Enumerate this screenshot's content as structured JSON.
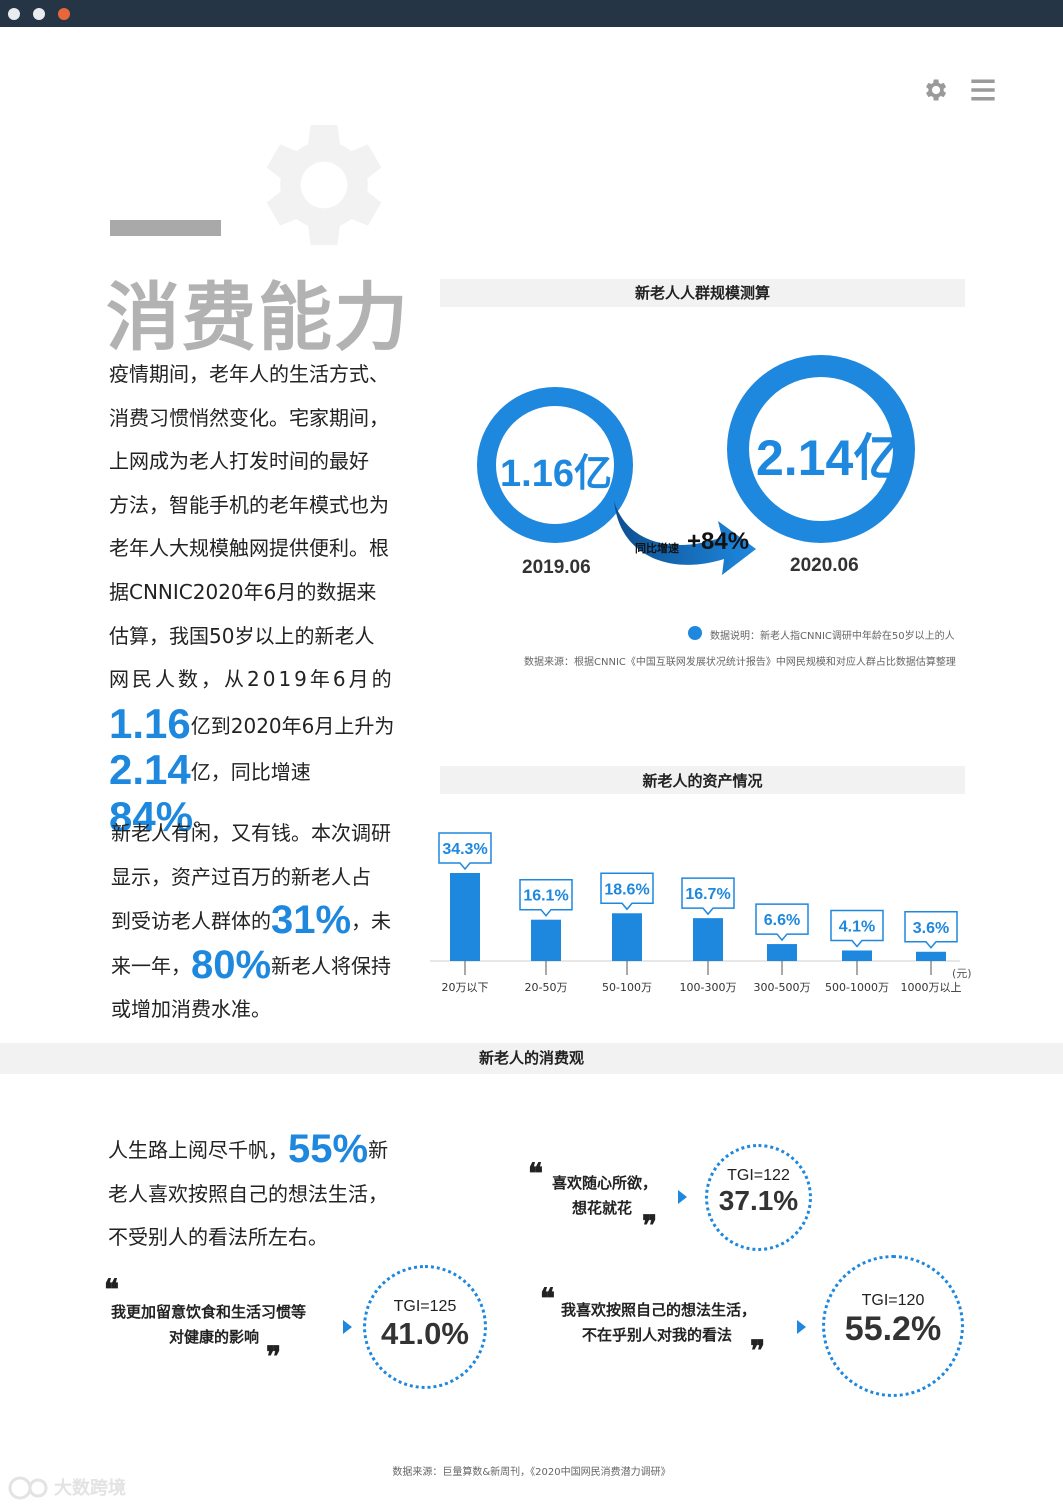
{
  "header": {
    "icons": [
      "gear-icon",
      "menu-icon"
    ]
  },
  "section": {
    "title": "消费能力"
  },
  "intro": {
    "line1": "疫情期间，老年人的生活方式、",
    "line2": "消费习惯悄然变化。宅家期间，",
    "line3": "上网成为老人打发时间的最好",
    "line4": "方法，智能手机的老年模式也为",
    "line5": "老年人大规模触网提供便利。根",
    "line6": "据CNNIC2020年6月的数据来",
    "line7": "估算，我国50岁以上的新老人",
    "line8": "网民人数，从2019年6月的",
    "num1": "1.16",
    "after_num1": "亿到2020年6月上升为",
    "num2": "2.14",
    "after_num2": "亿，同比增速",
    "num3": "84%",
    "end": "。"
  },
  "wealth_text": {
    "line1": "新老人有闲，又有钱。本次调研",
    "line2": "显示，资产过百万的新老人占",
    "line3_pre": "到受访老人群体的",
    "pct1": "31%",
    "line3_post": "，未",
    "line4_pre": "来一年，",
    "pct2": "80%",
    "line4_post": "新老人将保持",
    "line5": "或增加消费水准。"
  },
  "population_chart": {
    "title": "新老人人群规模测算",
    "value_2019": "1.16亿",
    "year_2019": "2019.06",
    "value_2020": "2.14亿",
    "year_2020": "2020.06",
    "growth_label": "同比增速",
    "growth_value": "+84%",
    "legend_note": "数据说明：新老人指CNNIC调研中年龄在50岁以上的人",
    "source": "数据来源：根据CNNIC《中国互联网发展状况统计报告》中网民规模和对应人群占比数据估算整理"
  },
  "chart_data": {
    "type": "bar",
    "title": "新老人的资产情况",
    "categories": [
      "20万以下",
      "20-50万",
      "50-100万",
      "100-300万",
      "300-500万",
      "500-1000万",
      "1000万以上"
    ],
    "values": [
      34.3,
      16.1,
      18.6,
      16.7,
      6.6,
      4.1,
      3.6
    ],
    "value_labels": [
      "34.3%",
      "16.1%",
      "18.6%",
      "16.7%",
      "6.6%",
      "4.1%",
      "3.6%"
    ],
    "unit": "(元)",
    "color": "#1e88df"
  },
  "consumption": {
    "title": "新老人的消费观",
    "text_pre": "人生路上阅尽千帆，",
    "pct": "55%",
    "text_line1_post": "新",
    "text_line2": "老人喜欢按照自己的想法生活，",
    "text_line3": "不受别人的看法所左右。",
    "quote1_line1": "我更加留意饮食和生活习惯等",
    "quote1_line2": "对健康的影响",
    "quote1_tgi": "TGI=125",
    "quote1_pct": "41.0%",
    "quote2_line1": "喜欢随心所欲，",
    "quote2_line2": "想花就花",
    "quote2_tgi": "TGI=122",
    "quote2_pct": "37.1%",
    "quote3_line1": "我喜欢按照自己的想法生活，",
    "quote3_line2": "不在乎别人对我的看法",
    "quote3_tgi": "TGI=120",
    "quote3_pct": "55.2%",
    "open_quote": "❝",
    "close_quote": "❞"
  },
  "footer": {
    "source": "数据来源：巨量算数&新周刊，《2020中国网民消费潜力调研》",
    "watermark": "大数跨境"
  },
  "colors": {
    "accent": "#1e88df",
    "titlebar": "#253545",
    "title_gray": "#b2b2b2"
  }
}
